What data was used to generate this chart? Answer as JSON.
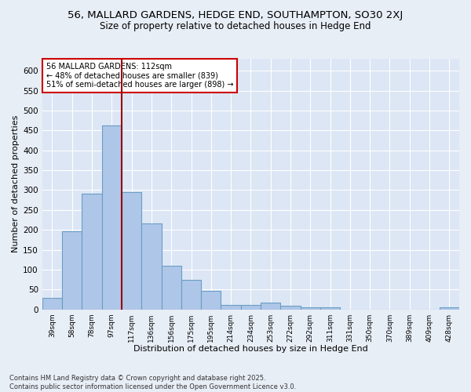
{
  "title": "56, MALLARD GARDENS, HEDGE END, SOUTHAMPTON, SO30 2XJ",
  "subtitle": "Size of property relative to detached houses in Hedge End",
  "xlabel": "Distribution of detached houses by size in Hedge End",
  "ylabel": "Number of detached properties",
  "categories": [
    "39sqm",
    "58sqm",
    "78sqm",
    "97sqm",
    "117sqm",
    "136sqm",
    "156sqm",
    "175sqm",
    "195sqm",
    "214sqm",
    "234sqm",
    "253sqm",
    "272sqm",
    "292sqm",
    "311sqm",
    "331sqm",
    "350sqm",
    "370sqm",
    "389sqm",
    "409sqm",
    "428sqm"
  ],
  "values": [
    28,
    197,
    290,
    462,
    294,
    216,
    110,
    75,
    46,
    12,
    11,
    17,
    9,
    5,
    5,
    0,
    0,
    0,
    0,
    0,
    5
  ],
  "bar_color": "#aec6e8",
  "bar_edge_color": "#6a9ec4",
  "vline_x": 3.5,
  "vline_color": "#990000",
  "annotation_text": "56 MALLARD GARDENS: 112sqm\n← 48% of detached houses are smaller (839)\n51% of semi-detached houses are larger (898) →",
  "annotation_box_color": "#ffffff",
  "annotation_box_edge": "#cc0000",
  "background_color": "#e8eef6",
  "plot_bg_color": "#dce6f5",
  "grid_color": "#ffffff",
  "title_fontsize": 9.5,
  "subtitle_fontsize": 8.5,
  "footer": "Contains HM Land Registry data © Crown copyright and database right 2025.\nContains public sector information licensed under the Open Government Licence v3.0.",
  "ylim": [
    0,
    630
  ],
  "yticks": [
    0,
    50,
    100,
    150,
    200,
    250,
    300,
    350,
    400,
    450,
    500,
    550,
    600
  ]
}
